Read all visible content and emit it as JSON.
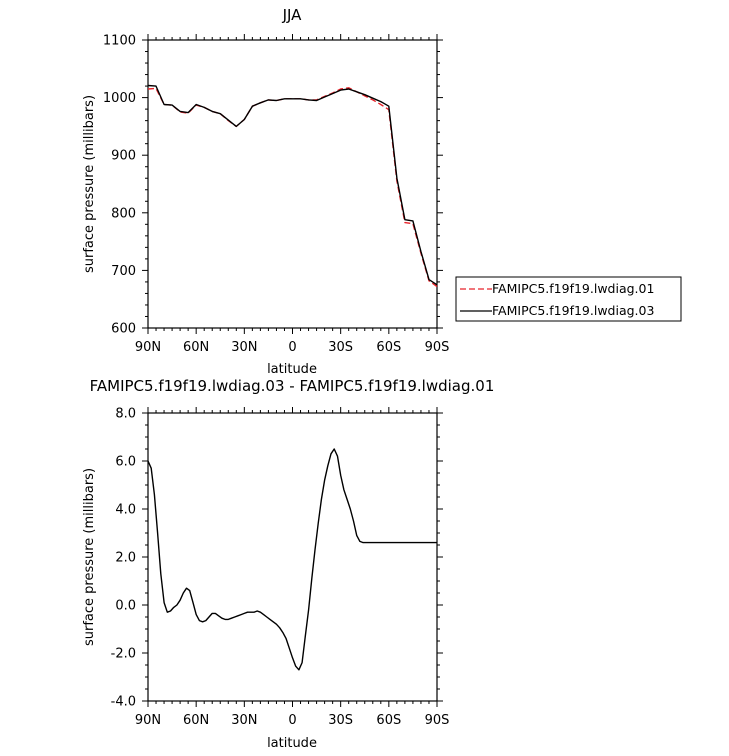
{
  "chart_data": [
    {
      "type": "line",
      "title": "JJA",
      "xlabel": "latitude",
      "ylabel": "surface pressure (millibars)",
      "xlim": [
        90,
        -90
      ],
      "ylim": [
        600,
        1100
      ],
      "x_ticks": [
        90,
        60,
        30,
        0,
        -30,
        -60,
        -90
      ],
      "x_tick_labels": [
        "90N",
        "60N",
        "30N",
        "0",
        "30S",
        "60S",
        "90S"
      ],
      "y_ticks": [
        600,
        700,
        800,
        900,
        1000,
        1100
      ],
      "y_tick_labels": [
        "600",
        "700",
        "800",
        "900",
        "1000",
        "1100"
      ],
      "legend_position": "right",
      "x": [
        90,
        85,
        80,
        75,
        70,
        65,
        60,
        55,
        50,
        45,
        40,
        35,
        30,
        25,
        20,
        15,
        10,
        5,
        0,
        -5,
        -10,
        -15,
        -20,
        -25,
        -30,
        -35,
        -40,
        -45,
        -50,
        -55,
        -60,
        -65,
        -70,
        -75,
        -80,
        -85,
        -90
      ],
      "series": [
        {
          "name": "FAMIPC5.f19f19.lwdiag.01",
          "color": "#e8232a",
          "dash": "dashed",
          "values": [
            1015,
            1016,
            988,
            987,
            975,
            973,
            987,
            983,
            976,
            972,
            960,
            950,
            962,
            985,
            991,
            996,
            995,
            998,
            998,
            998,
            996,
            996,
            1002,
            1008,
            1015,
            1017,
            1010,
            1003,
            996,
            988,
            979,
            855,
            783,
            781,
            730,
            682,
            672
          ]
        },
        {
          "name": "FAMIPC5.f19f19.lwdiag.03",
          "color": "#000000",
          "dash": "solid",
          "values": [
            1021,
            1020,
            988,
            987,
            976,
            974,
            988,
            983,
            976,
            972,
            961,
            950,
            962,
            985,
            991,
            996,
            995,
            998,
            998,
            998,
            996,
            995,
            1001,
            1007,
            1013,
            1015,
            1010,
            1005,
            999,
            993,
            985,
            860,
            788,
            786,
            733,
            684,
            675
          ]
        }
      ]
    },
    {
      "type": "line",
      "title": "FAMIPC5.f19f19.lwdiag.03 - FAMIPC5.f19f19.lwdiag.01",
      "xlabel": "latitude",
      "ylabel": "surface pressure (millibars)",
      "xlim": [
        90,
        -90
      ],
      "ylim": [
        -4,
        8
      ],
      "x_ticks": [
        90,
        60,
        30,
        0,
        -30,
        -60,
        -90
      ],
      "x_tick_labels": [
        "90N",
        "60N",
        "30N",
        "0",
        "30S",
        "60S",
        "90S"
      ],
      "y_ticks": [
        -4,
        -2,
        0,
        2,
        4,
        6,
        8
      ],
      "y_tick_labels": [
        "-4.0",
        "-2.0",
        "0.0",
        "2.0",
        "4.0",
        "6.0",
        "8.0"
      ],
      "x": [
        90,
        88,
        86,
        84,
        82,
        80,
        78,
        76,
        74,
        72,
        70,
        68,
        66,
        64,
        62,
        60,
        58,
        56,
        54,
        52,
        50,
        48,
        46,
        44,
        42,
        40,
        38,
        36,
        34,
        32,
        30,
        28,
        26,
        24,
        22,
        20,
        18,
        16,
        14,
        12,
        10,
        8,
        6,
        4,
        2,
        0,
        -2,
        -4,
        -6,
        -8,
        -10,
        -12,
        -14,
        -16,
        -18,
        -20,
        -22,
        -24,
        -26,
        -28,
        -30,
        -32,
        -34,
        -36,
        -38,
        -40,
        -42,
        -44,
        -46,
        -48,
        -50,
        -52,
        -54,
        -56,
        -58,
        -60,
        -62,
        -64,
        -66,
        -68,
        -70,
        -72,
        -74,
        -76,
        -78,
        -80,
        -82,
        -84,
        -86,
        -88,
        -90
      ],
      "series": [
        {
          "name": "",
          "color": "#000000",
          "dash": "solid",
          "values": [
            6.0,
            5.7,
            4.6,
            3.0,
            1.3,
            0.1,
            -0.3,
            -0.25,
            -0.1,
            0.0,
            0.2,
            0.5,
            0.7,
            0.6,
            0.1,
            -0.4,
            -0.65,
            -0.7,
            -0.65,
            -0.5,
            -0.35,
            -0.35,
            -0.45,
            -0.55,
            -0.6,
            -0.6,
            -0.55,
            -0.5,
            -0.45,
            -0.4,
            -0.35,
            -0.3,
            -0.3,
            -0.3,
            -0.25,
            -0.3,
            -0.4,
            -0.5,
            -0.6,
            -0.7,
            -0.8,
            -0.95,
            -1.15,
            -1.4,
            -1.8,
            -2.2,
            -2.55,
            -2.7,
            -2.4,
            -1.3,
            -0.2,
            1.1,
            2.3,
            3.4,
            4.4,
            5.2,
            5.8,
            6.3,
            6.5,
            6.2,
            5.4,
            4.8,
            4.4,
            4.0,
            3.5,
            2.9,
            2.65,
            2.6,
            2.6,
            2.6,
            2.6,
            2.6,
            2.6,
            2.6,
            2.6,
            2.6,
            2.6,
            2.6,
            2.6,
            2.6,
            2.6,
            2.6,
            2.6,
            2.6,
            2.6,
            2.6,
            2.6,
            2.6,
            2.6,
            2.6,
            2.6
          ],
          "x_end": -90
        }
      ]
    }
  ]
}
